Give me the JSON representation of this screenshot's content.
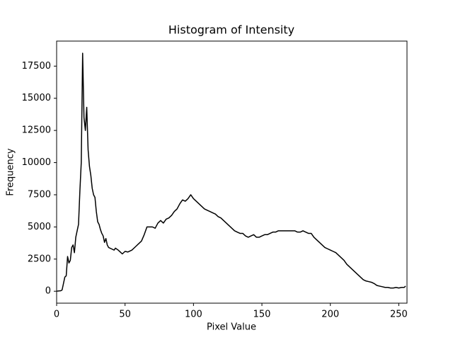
{
  "chart_data": {
    "type": "line",
    "title": "Histogram of Intensity",
    "x_label": "Pixel Value",
    "y_label": "Frequency",
    "xlim": [
      0,
      256
    ],
    "xticks": [
      0,
      50,
      100,
      150,
      200,
      250
    ],
    "ylim": [
      -926,
      19446
    ],
    "yticks": [
      0,
      2500,
      5000,
      7500,
      10000,
      12500,
      15000,
      17500
    ],
    "grid": false,
    "series": [
      {
        "color": "#000000",
        "x": [
          0,
          1,
          2,
          3,
          4,
          5,
          6,
          7,
          8,
          9,
          10,
          11,
          12,
          13,
          14,
          15,
          16,
          17,
          18,
          19,
          20,
          21,
          22,
          23,
          24,
          25,
          26,
          27,
          28,
          29,
          30,
          31,
          32,
          33,
          34,
          35,
          36,
          37,
          38,
          40,
          42,
          43,
          45,
          47,
          48,
          50,
          52,
          55,
          58,
          60,
          62,
          64,
          66,
          68,
          70,
          72,
          74,
          76,
          78,
          80,
          82,
          84,
          86,
          88,
          90,
          92,
          94,
          96,
          98,
          100,
          102,
          104,
          106,
          108,
          110,
          112,
          114,
          116,
          118,
          120,
          122,
          124,
          126,
          128,
          130,
          132,
          134,
          136,
          138,
          140,
          142,
          144,
          146,
          148,
          150,
          152,
          154,
          156,
          158,
          160,
          162,
          164,
          166,
          168,
          170,
          172,
          174,
          176,
          178,
          180,
          182,
          184,
          186,
          188,
          190,
          192,
          194,
          196,
          198,
          200,
          202,
          204,
          206,
          208,
          210,
          212,
          214,
          216,
          218,
          220,
          222,
          224,
          226,
          228,
          230,
          232,
          234,
          236,
          238,
          240,
          242,
          244,
          246,
          248,
          250,
          252,
          254,
          255
        ],
        "values": [
          0,
          20,
          30,
          40,
          100,
          600,
          1100,
          1200,
          2700,
          2200,
          2400,
          3400,
          3600,
          3000,
          4200,
          4700,
          5200,
          7800,
          10000,
          18500,
          13500,
          12500,
          14300,
          11000,
          9700,
          9000,
          8000,
          7500,
          7300,
          6200,
          5400,
          5200,
          4800,
          4500,
          4300,
          3800,
          4100,
          3600,
          3400,
          3300,
          3200,
          3350,
          3200,
          3000,
          2900,
          3100,
          3050,
          3200,
          3500,
          3700,
          3900,
          4400,
          5000,
          5000,
          5000,
          4900,
          5300,
          5500,
          5300,
          5600,
          5700,
          5900,
          6200,
          6400,
          6800,
          7100,
          7000,
          7200,
          7500,
          7200,
          7000,
          6800,
          6600,
          6400,
          6300,
          6200,
          6100,
          6000,
          5800,
          5700,
          5500,
          5300,
          5100,
          4900,
          4700,
          4600,
          4500,
          4500,
          4300,
          4200,
          4300,
          4400,
          4200,
          4200,
          4300,
          4400,
          4400,
          4500,
          4600,
          4600,
          4700,
          4700,
          4700,
          4700,
          4700,
          4700,
          4700,
          4600,
          4600,
          4700,
          4600,
          4500,
          4500,
          4200,
          4000,
          3800,
          3600,
          3400,
          3300,
          3200,
          3100,
          3000,
          2800,
          2600,
          2400,
          2100,
          1900,
          1700,
          1500,
          1300,
          1100,
          900,
          800,
          750,
          700,
          600,
          450,
          400,
          350,
          300,
          300,
          250,
          250,
          300,
          250,
          300,
          300,
          400
        ]
      }
    ]
  }
}
